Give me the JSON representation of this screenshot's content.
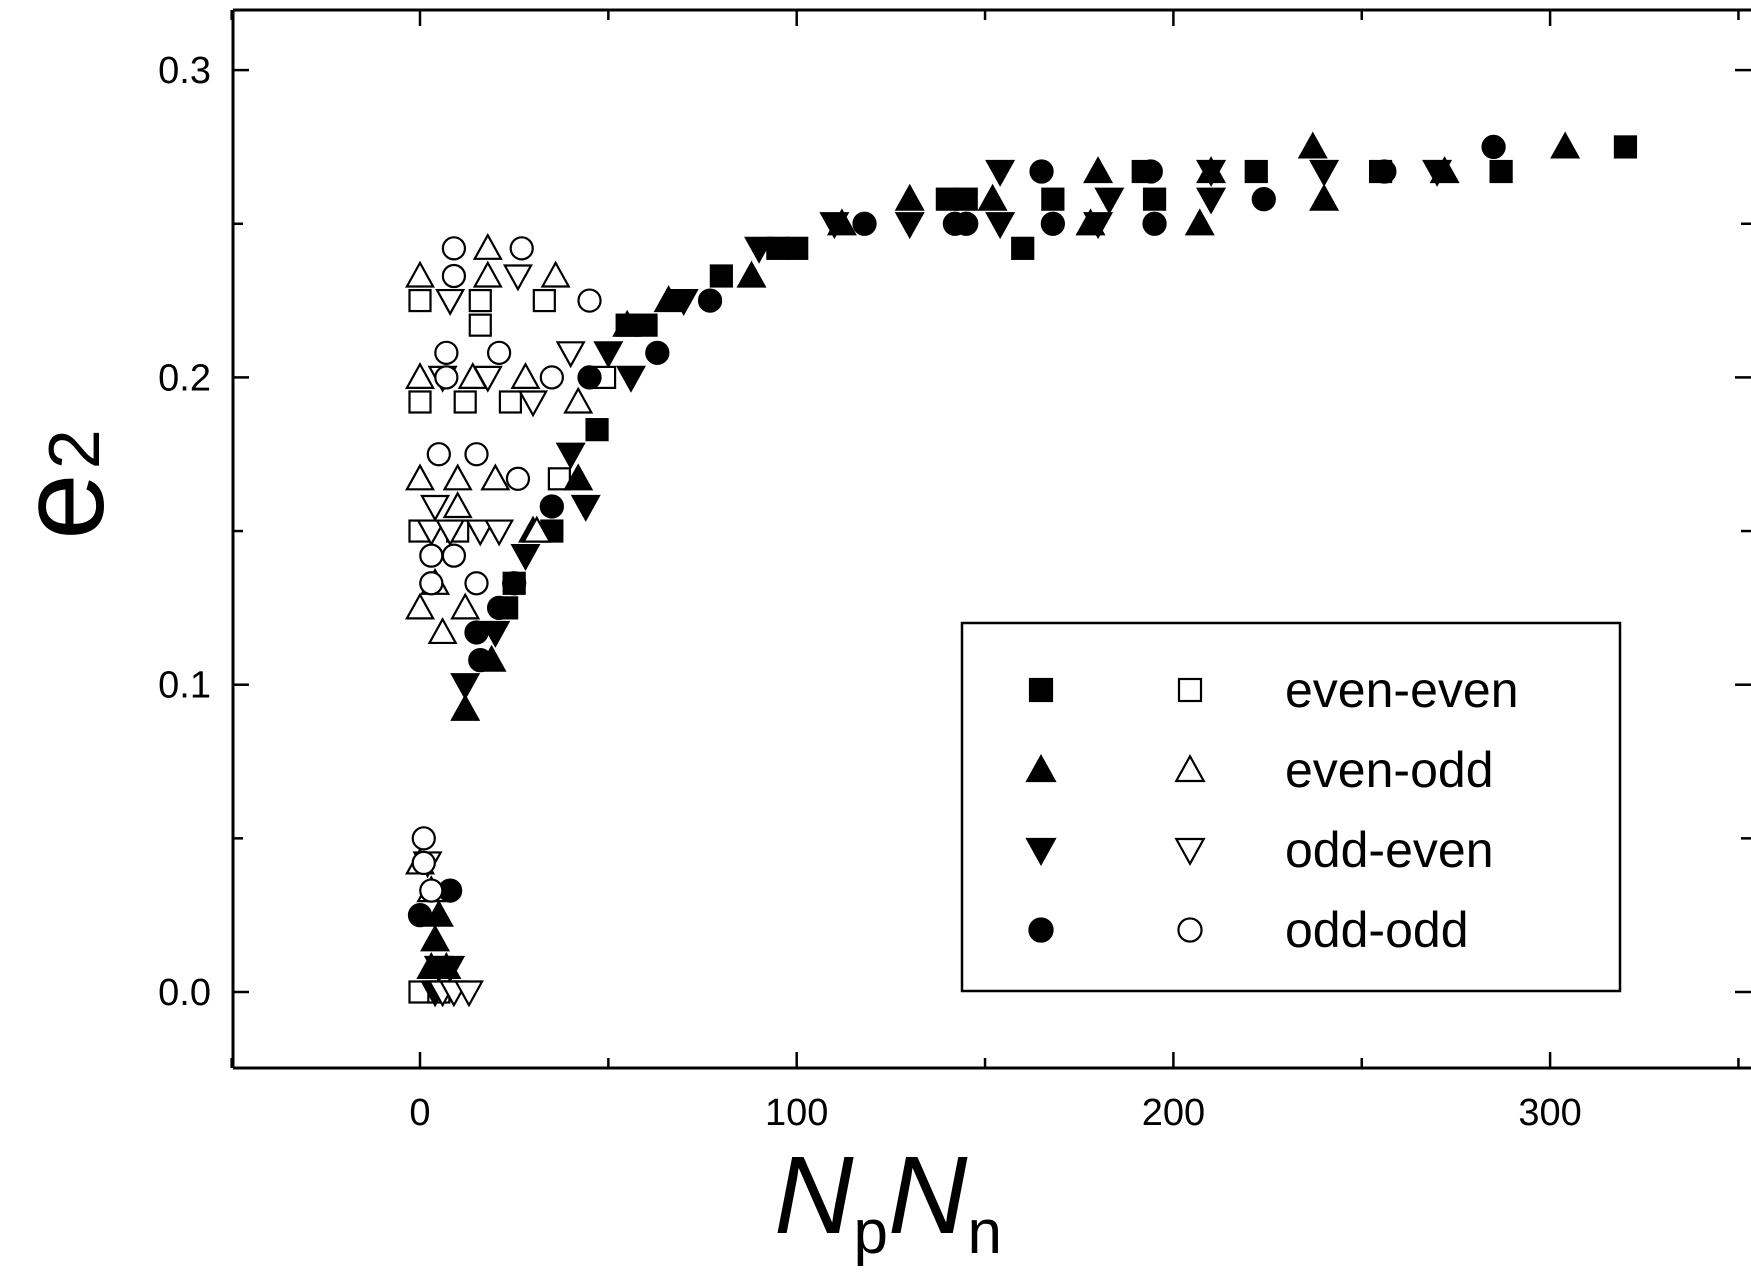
{
  "chart_data": {
    "type": "scatter",
    "title": "",
    "xlabel": {
      "main": "N",
      "sub1": "p",
      "mid": "N",
      "sub2": "n"
    },
    "ylabel": {
      "main": "e",
      "sub": "2"
    },
    "xlim": [
      -50,
      350
    ],
    "ylim": [
      -0.025,
      0.32
    ],
    "xticks": [
      0,
      100,
      200,
      300
    ],
    "xtick_labels": [
      "0",
      "100",
      "200",
      "300"
    ],
    "yticks": [
      0.0,
      0.1,
      0.2,
      0.3
    ],
    "ytick_labels": [
      "0.0",
      "0.1",
      "0.2",
      "0.3"
    ],
    "grid": false,
    "legend_position": "lower-right",
    "legend": [
      {
        "label": "even-even",
        "marker": "square"
      },
      {
        "label": "even-odd",
        "marker": "triangle-up"
      },
      {
        "label": "odd-even",
        "marker": "triangle-down"
      },
      {
        "label": "odd-odd",
        "marker": "circle"
      }
    ],
    "series": [
      {
        "group": "even-even",
        "style": "filled",
        "marker": "square",
        "points": [
          [
            35,
            0.15
          ],
          [
            23,
            0.125
          ],
          [
            25,
            0.133
          ],
          [
            47,
            0.183
          ],
          [
            55,
            0.217
          ],
          [
            60,
            0.217
          ],
          [
            80,
            0.233
          ],
          [
            95,
            0.242
          ],
          [
            100,
            0.242
          ],
          [
            140,
            0.258
          ],
          [
            145,
            0.258
          ],
          [
            160,
            0.242
          ],
          [
            168,
            0.258
          ],
          [
            192,
            0.267
          ],
          [
            195,
            0.258
          ],
          [
            222,
            0.267
          ],
          [
            255,
            0.267
          ],
          [
            287,
            0.267
          ],
          [
            320,
            0.275
          ]
        ]
      },
      {
        "group": "even-even",
        "style": "open",
        "marker": "square",
        "points": [
          [
            0,
            0.225
          ],
          [
            16,
            0.225
          ],
          [
            16,
            0.217
          ],
          [
            0,
            0.192
          ],
          [
            12,
            0.192
          ],
          [
            24,
            0.192
          ],
          [
            33,
            0.225
          ],
          [
            37,
            0.167
          ],
          [
            49,
            0.2
          ],
          [
            0,
            0.15
          ],
          [
            10,
            0.15
          ],
          [
            0,
            0.0
          ],
          [
            5,
            0.0
          ]
        ]
      },
      {
        "group": "even-odd",
        "style": "filled",
        "marker": "triangle-up",
        "points": [
          [
            12,
            0.092
          ],
          [
            19,
            0.108
          ],
          [
            30,
            0.15
          ],
          [
            42,
            0.167
          ],
          [
            55,
            0.217
          ],
          [
            66,
            0.225
          ],
          [
            88,
            0.233
          ],
          [
            112,
            0.25
          ],
          [
            130,
            0.258
          ],
          [
            152,
            0.258
          ],
          [
            178,
            0.25
          ],
          [
            180,
            0.267
          ],
          [
            207,
            0.25
          ],
          [
            210,
            0.267
          ],
          [
            237,
            0.275
          ],
          [
            240,
            0.258
          ],
          [
            272,
            0.267
          ],
          [
            304,
            0.275
          ],
          [
            5,
            0.025
          ],
          [
            4,
            0.017
          ],
          [
            3,
            0.008
          ],
          [
            7,
            0.008
          ]
        ]
      },
      {
        "group": "even-odd",
        "style": "open",
        "marker": "triangle-up",
        "points": [
          [
            0,
            0.233
          ],
          [
            18,
            0.242
          ],
          [
            18,
            0.233
          ],
          [
            36,
            0.233
          ],
          [
            0,
            0.2
          ],
          [
            14,
            0.2
          ],
          [
            28,
            0.2
          ],
          [
            42,
            0.192
          ],
          [
            0,
            0.167
          ],
          [
            10,
            0.167
          ],
          [
            20,
            0.167
          ],
          [
            10,
            0.158
          ],
          [
            4,
            0.133
          ],
          [
            0,
            0.125
          ],
          [
            6,
            0.117
          ],
          [
            12,
            0.125
          ],
          [
            31,
            0.15
          ],
          [
            0,
            0.042
          ],
          [
            3,
            0.033
          ]
        ]
      },
      {
        "group": "odd-even",
        "style": "filled",
        "marker": "triangle-down",
        "points": [
          [
            12,
            0.1
          ],
          [
            20,
            0.117
          ],
          [
            28,
            0.142
          ],
          [
            40,
            0.175
          ],
          [
            44,
            0.158
          ],
          [
            50,
            0.208
          ],
          [
            56,
            0.2
          ],
          [
            70,
            0.225
          ],
          [
            90,
            0.242
          ],
          [
            110,
            0.25
          ],
          [
            130,
            0.25
          ],
          [
            154,
            0.267
          ],
          [
            154,
            0.25
          ],
          [
            180,
            0.25
          ],
          [
            183,
            0.258
          ],
          [
            210,
            0.267
          ],
          [
            210,
            0.258
          ],
          [
            240,
            0.267
          ],
          [
            270,
            0.267
          ],
          [
            5,
            0.008
          ],
          [
            8,
            0.008
          ],
          [
            4,
            0.0
          ]
        ]
      },
      {
        "group": "odd-even",
        "style": "open",
        "marker": "triangle-down",
        "points": [
          [
            8,
            0.225
          ],
          [
            26,
            0.233
          ],
          [
            40,
            0.208
          ],
          [
            6,
            0.2
          ],
          [
            18,
            0.2
          ],
          [
            30,
            0.192
          ],
          [
            4,
            0.158
          ],
          [
            3,
            0.15
          ],
          [
            8,
            0.15
          ],
          [
            16,
            0.15
          ],
          [
            21,
            0.15
          ],
          [
            6,
            0.0
          ],
          [
            9,
            0.0
          ],
          [
            13,
            0.0
          ],
          [
            2,
            0.042
          ]
        ]
      },
      {
        "group": "odd-odd",
        "style": "filled",
        "marker": "circle",
        "points": [
          [
            15,
            0.117
          ],
          [
            16,
            0.108
          ],
          [
            21,
            0.125
          ],
          [
            25,
            0.133
          ],
          [
            35,
            0.158
          ],
          [
            45,
            0.2
          ],
          [
            63,
            0.208
          ],
          [
            77,
            0.225
          ],
          [
            118,
            0.25
          ],
          [
            142,
            0.25
          ],
          [
            145,
            0.25
          ],
          [
            165,
            0.267
          ],
          [
            168,
            0.25
          ],
          [
            194,
            0.267
          ],
          [
            195,
            0.25
          ],
          [
            224,
            0.258
          ],
          [
            256,
            0.267
          ],
          [
            285,
            0.275
          ],
          [
            0,
            0.025
          ],
          [
            8,
            0.033
          ]
        ]
      },
      {
        "group": "odd-odd",
        "style": "open",
        "marker": "circle",
        "points": [
          [
            9,
            0.242
          ],
          [
            27,
            0.242
          ],
          [
            9,
            0.233
          ],
          [
            45,
            0.225
          ],
          [
            7,
            0.208
          ],
          [
            21,
            0.208
          ],
          [
            7,
            0.2
          ],
          [
            35,
            0.2
          ],
          [
            5,
            0.175
          ],
          [
            15,
            0.175
          ],
          [
            26,
            0.167
          ],
          [
            3,
            0.142
          ],
          [
            9,
            0.142
          ],
          [
            3,
            0.133
          ],
          [
            15,
            0.133
          ],
          [
            1,
            0.05
          ],
          [
            1,
            0.042
          ],
          [
            3,
            0.033
          ]
        ]
      }
    ]
  }
}
